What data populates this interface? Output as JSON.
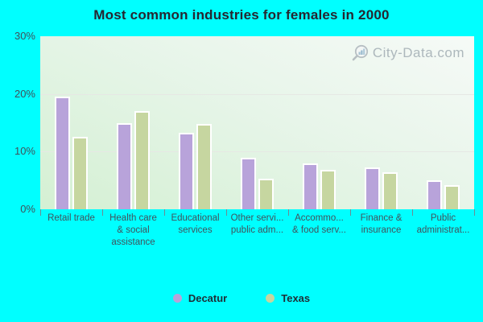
{
  "title": "Most common industries for females in 2000",
  "watermark": "City-Data.com",
  "chart_data": {
    "type": "bar",
    "title": "Most common industries for females in 2000",
    "categories": [
      "Retail trade",
      "Health care & social assistance",
      "Educational services",
      "Other servi... public adm...",
      "Accommo... & food serv...",
      "Finance & insurance",
      "Public administrat..."
    ],
    "category_label_lines": [
      [
        "Retail trade"
      ],
      [
        "Health care",
        "& social",
        "assistance"
      ],
      [
        "Educational",
        "services"
      ],
      [
        "Other servi...",
        "public adm..."
      ],
      [
        "Accommo...",
        "& food serv..."
      ],
      [
        "Finance &",
        "insurance"
      ],
      [
        "Public",
        "administrat..."
      ]
    ],
    "series": [
      {
        "name": "Decatur",
        "color": "#b8a3da",
        "values": [
          19.5,
          14.9,
          13.3,
          9.0,
          7.9,
          7.3,
          5.0
        ]
      },
      {
        "name": "Texas",
        "color": "#c6d6a0",
        "values": [
          12.6,
          17.0,
          14.8,
          5.3,
          6.9,
          6.4,
          4.2
        ]
      }
    ],
    "ylabel": "",
    "xlabel": "",
    "ylim": [
      0,
      30
    ],
    "yticks": [
      {
        "value": 30,
        "label": "30%"
      },
      {
        "value": 20,
        "label": "20%"
      },
      {
        "value": 10,
        "label": "10%"
      },
      {
        "value": 0,
        "label": "0%"
      }
    ],
    "grid": "horizontal",
    "legend_position": "bottom-center"
  },
  "colors": {
    "background": "#00ffff",
    "plot_gradient_top": "#f6faf7",
    "plot_gradient_bottom": "#d4f0d3",
    "decatur_bar": "#b8a3da",
    "texas_bar": "#c6d6a0",
    "bar_border": "#ffffff",
    "title_text": "#262630",
    "axis_text": "#41525c",
    "watermark_text": "#9aa6ad"
  }
}
